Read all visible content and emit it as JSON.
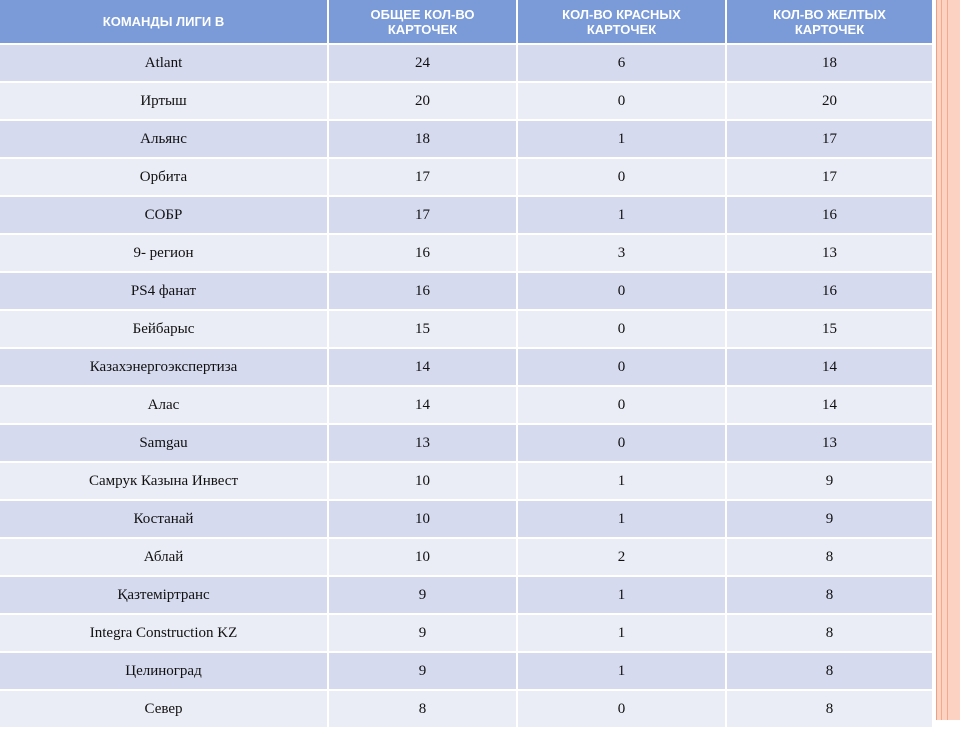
{
  "table": {
    "header": [
      "КОМАНДЫ ЛИГИ  В",
      "ОБЩЕЕ КОЛ-ВО КАРТОЧЕК",
      "КОЛ-ВО КРАСНЫХ КАРТОЧЕК",
      "КОЛ-ВО ЖЕЛТЫХ КАРТОЧЕК"
    ],
    "rows": [
      [
        "Atlant",
        24,
        6,
        18
      ],
      [
        "Иртыш",
        20,
        0,
        20
      ],
      [
        "Альянс",
        18,
        1,
        17
      ],
      [
        "Орбита",
        17,
        0,
        17
      ],
      [
        "СОБР",
        17,
        1,
        16
      ],
      [
        "9- регион",
        16,
        3,
        13
      ],
      [
        "PS4 фанат",
        16,
        0,
        16
      ],
      [
        "Бейбарыс",
        15,
        0,
        15
      ],
      [
        "Казахэнергоэкспертиза",
        14,
        0,
        14
      ],
      [
        "Алас",
        14,
        0,
        14
      ],
      [
        "Samgau",
        13,
        0,
        13
      ],
      [
        "Самрук Казына Инвест",
        10,
        1,
        9
      ],
      [
        "Костанай",
        10,
        1,
        9
      ],
      [
        "Аблай",
        10,
        2,
        8
      ],
      [
        "Қазтеміртранс",
        9,
        1,
        8
      ],
      [
        "Integra Construction KZ",
        9,
        1,
        8
      ],
      [
        "Целиноград",
        9,
        1,
        8
      ],
      [
        "Север",
        8,
        0,
        8
      ]
    ]
  }
}
